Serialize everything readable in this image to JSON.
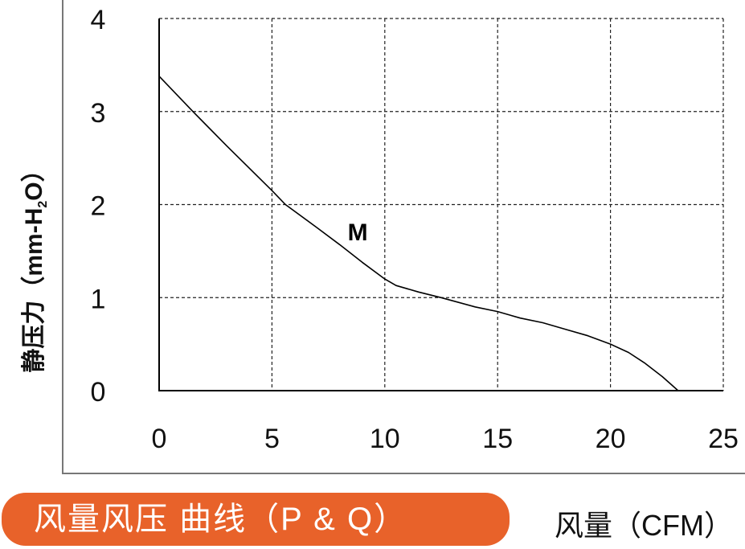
{
  "chart_data": {
    "type": "line",
    "title": "风量风压 曲线（P & Q）",
    "xlabel": "风量（CFM）",
    "ylabel": {
      "main": "静压力（mm-H",
      "sub": "2",
      "end": "O）"
    },
    "xlim": [
      0,
      25
    ],
    "ylim": [
      0,
      4
    ],
    "x_ticks": [
      0,
      5,
      10,
      15,
      20,
      25
    ],
    "y_ticks": [
      0,
      1,
      2,
      3,
      4
    ],
    "grid": true,
    "series": [
      {
        "label": "M",
        "x": [
          0,
          1.5,
          3,
          5,
          5.6,
          7,
          8,
          9,
          10,
          10.5,
          11.5,
          12.5,
          14,
          15,
          16,
          17,
          18,
          19,
          20,
          20.8,
          21.5,
          22.3,
          23
        ],
        "y": [
          3.38,
          3.0,
          2.63,
          2.15,
          2.0,
          1.75,
          1.57,
          1.38,
          1.2,
          1.13,
          1.06,
          1.0,
          0.9,
          0.85,
          0.78,
          0.73,
          0.66,
          0.59,
          0.5,
          0.41,
          0.3,
          0.15,
          0.0
        ]
      }
    ],
    "annotations": [
      {
        "text": "M",
        "x": 8.8,
        "y": 1.72
      }
    ],
    "line_color": "#000000",
    "title_bg_color": "#E8622A"
  }
}
